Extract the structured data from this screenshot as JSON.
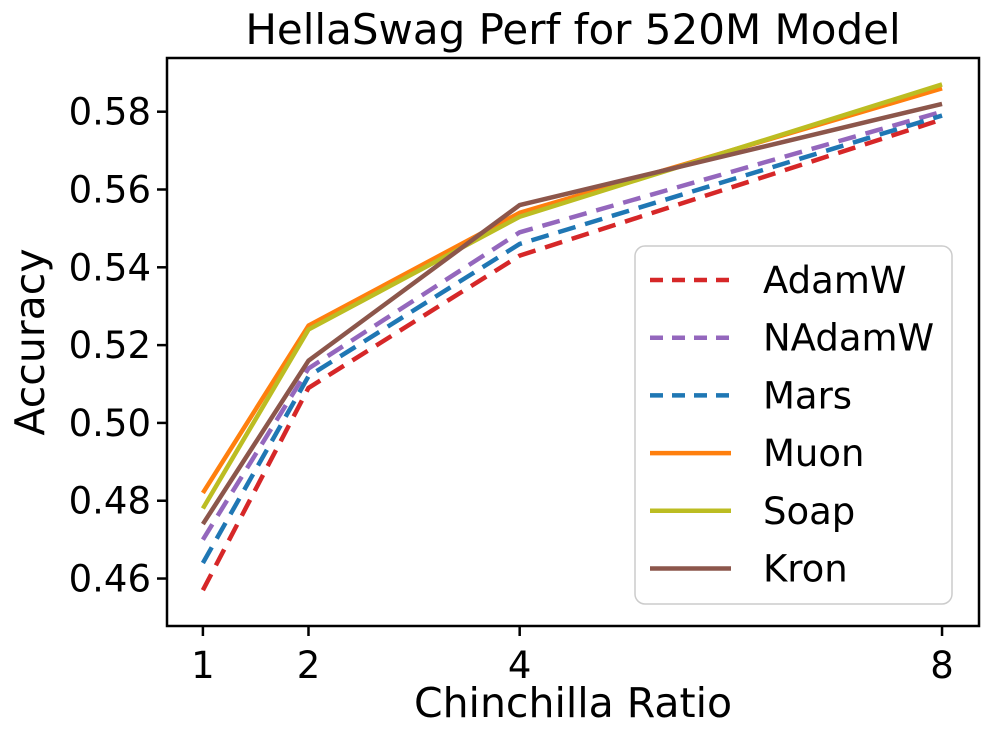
{
  "chart_data": {
    "type": "line",
    "title": "HellaSwag Perf for 520M Model",
    "xlabel": "Chinchilla Ratio",
    "ylabel": "Accuracy",
    "x": [
      1,
      2,
      4,
      8
    ],
    "x_tick_labels": [
      "1",
      "2",
      "4",
      "8"
    ],
    "y_ticks": [
      0.46,
      0.48,
      0.5,
      0.52,
      0.54,
      0.56,
      0.58
    ],
    "y_tick_labels": [
      "0.46",
      "0.48",
      "0.50",
      "0.52",
      "0.54",
      "0.56",
      "0.58"
    ],
    "xlim": [
      0.66,
      8.35
    ],
    "ylim": [
      0.4478,
      0.5938
    ],
    "x_scale": "linear",
    "grid": false,
    "legend_position": "center right",
    "series": [
      {
        "name": "AdamW",
        "values": [
          0.457,
          0.509,
          0.543,
          0.578
        ],
        "color": "#d62728",
        "dashed": true
      },
      {
        "name": "NAdamW",
        "values": [
          0.47,
          0.514,
          0.549,
          0.58
        ],
        "color": "#9467bd",
        "dashed": true
      },
      {
        "name": "Mars",
        "values": [
          0.464,
          0.512,
          0.546,
          0.579
        ],
        "color": "#1f77b4",
        "dashed": true
      },
      {
        "name": "Muon",
        "values": [
          0.482,
          0.525,
          0.554,
          0.586
        ],
        "color": "#ff7f0e",
        "dashed": false
      },
      {
        "name": "Soap",
        "values": [
          0.478,
          0.524,
          0.553,
          0.587
        ],
        "color": "#bcbd22",
        "dashed": false
      },
      {
        "name": "Kron",
        "values": [
          0.474,
          0.516,
          0.556,
          0.582
        ],
        "color": "#8c564b",
        "dashed": false
      }
    ],
    "spine_color": "#000000",
    "legend_border_color": "#cccccc",
    "legend_background": "#ffffff"
  }
}
